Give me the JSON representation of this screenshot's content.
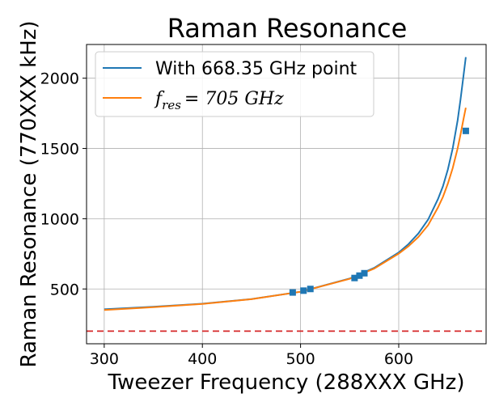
{
  "chart_data": {
    "type": "line",
    "title": "Raman Resonance",
    "xlabel": "Tweezer Frequency (288XXX GHz)",
    "ylabel": "Raman Resonance (770XXX kHz)",
    "xlim": [
      282,
      689
    ],
    "ylim": [
      110,
      2240
    ],
    "xticks": [
      300,
      400,
      500,
      600
    ],
    "yticks": [
      500,
      1000,
      1500,
      2000
    ],
    "grid": true,
    "legend_position": "top-left",
    "series": [
      {
        "name": "With 668.35 GHz point",
        "kind": "fit-line",
        "color": "#1f77b4",
        "x": [
          300,
          350,
          400,
          450,
          500,
          550,
          575,
          600,
          610,
          620,
          630,
          640,
          645,
          650,
          655,
          660,
          663,
          666,
          668.35
        ],
        "y": [
          355,
          373,
          395,
          428,
          480,
          574,
          650,
          760,
          820,
          895,
          995,
          1140,
          1230,
          1350,
          1500,
          1700,
          1850,
          2020,
          2150
        ]
      },
      {
        "name": "f_res = 705 GHz",
        "legend_label": {
          "symbol": "f",
          "subscript": "res",
          "text": "= 705 GHz"
        },
        "kind": "fit-line",
        "color": "#ff7f0e",
        "x": [
          300,
          350,
          400,
          450,
          500,
          550,
          575,
          600,
          610,
          620,
          630,
          640,
          645,
          650,
          655,
          660,
          663,
          666,
          668.35
        ],
        "y": [
          350,
          370,
          393,
          427,
          480,
          572,
          645,
          752,
          805,
          870,
          955,
          1080,
          1155,
          1250,
          1360,
          1500,
          1600,
          1710,
          1790
        ]
      },
      {
        "kind": "markers",
        "color": "#1f77b4",
        "x": [
          492,
          503,
          510,
          555,
          560,
          565,
          668.35
        ],
        "y": [
          475,
          488,
          500,
          578,
          595,
          612,
          1625
        ]
      }
    ],
    "reference_line": {
      "y": 200,
      "color": "#d62728",
      "style": "dashed"
    }
  }
}
